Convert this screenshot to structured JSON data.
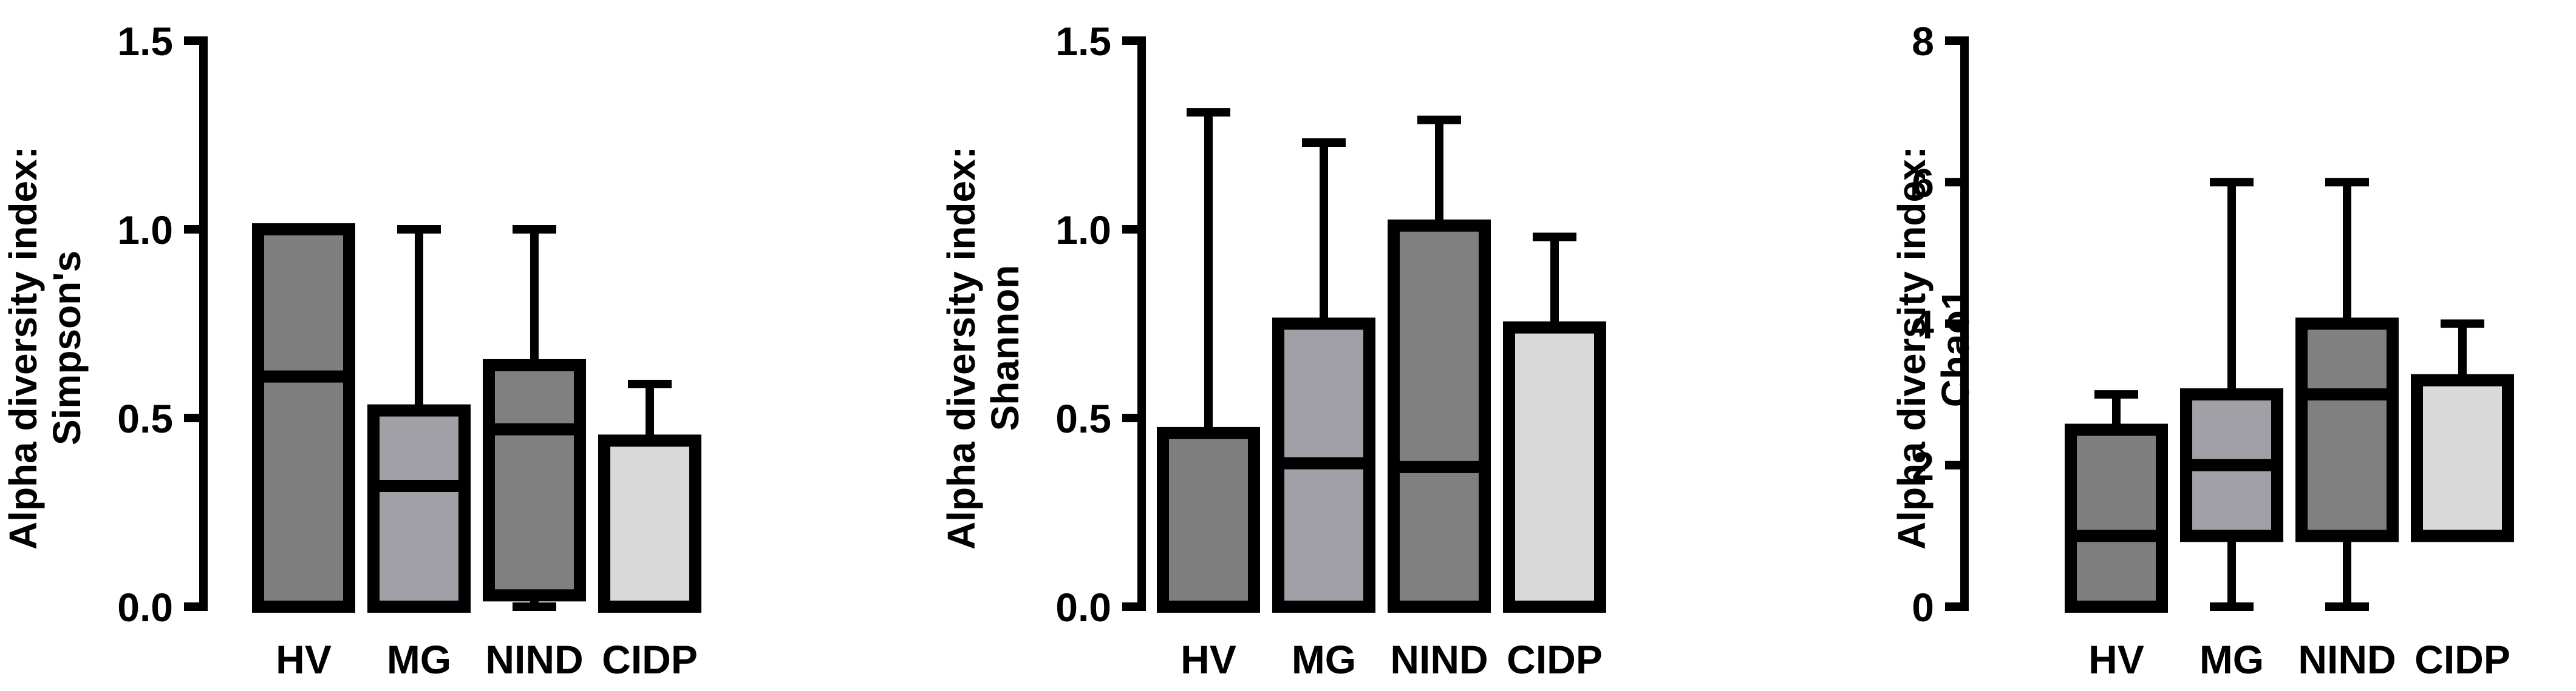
{
  "colors": {
    "HV": "#7f7f7f",
    "MG": "#a1a0a6",
    "NIND": "#808080",
    "CIDP": "#d9d9d9",
    "stroke": "#000000"
  },
  "chart_data": [
    {
      "type": "boxplot",
      "ylabel_line1": "Alpha diversity index:",
      "ylabel_line2": "Simpson's",
      "ylim": [
        0,
        1.5
      ],
      "yticks": [
        0,
        0.5,
        1.0,
        1.5
      ],
      "ytick_labels": [
        "0.0",
        "0.5",
        "1.0",
        "1.5"
      ],
      "categories": [
        "HV",
        "MG",
        "NIND",
        "CIDP"
      ],
      "boxes": [
        {
          "name": "HV",
          "min": 0,
          "q1": 0,
          "median": 0.61,
          "q3": 1.0,
          "max": 1.0
        },
        {
          "name": "MG",
          "min": 0,
          "q1": 0,
          "median": 0.32,
          "q3": 0.52,
          "max": 1.0
        },
        {
          "name": "NIND",
          "min": 0,
          "q1": 0.03,
          "median": 0.47,
          "q3": 0.64,
          "max": 1.0
        },
        {
          "name": "CIDP",
          "min": 0,
          "q1": 0,
          "median": 0,
          "q3": 0.44,
          "max": 0.59
        }
      ]
    },
    {
      "type": "boxplot",
      "ylabel_line1": "Alpha diversity index:",
      "ylabel_line2": "Shannon",
      "ylim": [
        0,
        1.5
      ],
      "yticks": [
        0,
        0.5,
        1.0,
        1.5
      ],
      "ytick_labels": [
        "0.0",
        "0.5",
        "1.0",
        "1.5"
      ],
      "categories": [
        "HV",
        "MG",
        "NIND",
        "CIDP"
      ],
      "boxes": [
        {
          "name": "HV",
          "min": 0,
          "q1": 0,
          "median": 0,
          "q3": 0.46,
          "max": 1.31
        },
        {
          "name": "MG",
          "min": 0,
          "q1": 0,
          "median": 0.38,
          "q3": 0.75,
          "max": 1.23
        },
        {
          "name": "NIND",
          "min": 0,
          "q1": 0,
          "median": 0.37,
          "q3": 1.01,
          "max": 1.29
        },
        {
          "name": "CIDP",
          "min": 0,
          "q1": 0,
          "median": 0,
          "q3": 0.74,
          "max": 0.98
        }
      ]
    },
    {
      "type": "boxplot",
      "ylabel_line1": "Alpha diversity index:",
      "ylabel_line2": "Chao1",
      "ylim": [
        0,
        8
      ],
      "yticks": [
        0,
        2,
        4,
        6,
        8
      ],
      "ytick_labels": [
        "0",
        "2",
        "4",
        "6",
        "8"
      ],
      "categories": [
        "HV",
        "MG",
        "NIND",
        "CIDP"
      ],
      "boxes": [
        {
          "name": "HV",
          "min": 0,
          "q1": 0,
          "median": 1.0,
          "q3": 2.5,
          "max": 3.0
        },
        {
          "name": "MG",
          "min": 0,
          "q1": 1.0,
          "median": 2.0,
          "q3": 3.0,
          "max": 6.0
        },
        {
          "name": "NIND",
          "min": 0,
          "q1": 1.0,
          "median": 3.0,
          "q3": 4.0,
          "max": 6.0
        },
        {
          "name": "CIDP",
          "min": 1.0,
          "q1": 1.0,
          "median": 1.0,
          "q3": 3.2,
          "max": 4.0
        }
      ]
    }
  ]
}
